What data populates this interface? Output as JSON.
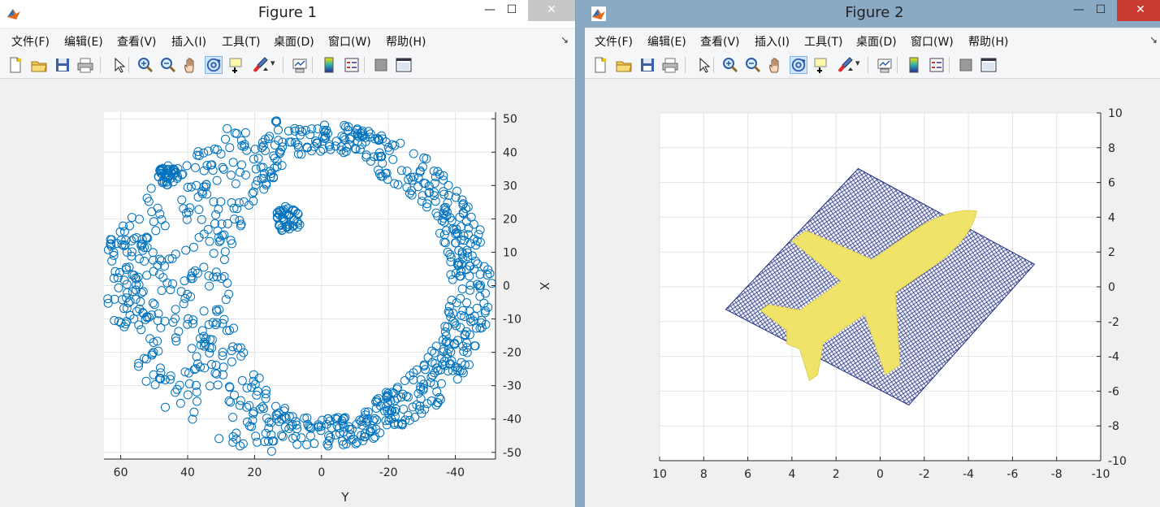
{
  "figures": [
    {
      "title": "Figure 1",
      "menu": [
        "文件(F)",
        "编辑(E)",
        "查看(V)",
        "插入(I)",
        "工具(T)",
        "桌面(D)",
        "窗口(W)",
        "帮助(H)"
      ],
      "toolbar_icons": [
        "new-figure-icon",
        "open-file-icon",
        "save-icon",
        "print-icon",
        "pointer-icon",
        "zoom-in-icon",
        "zoom-out-icon",
        "pan-icon",
        "rotate-3d-icon",
        "data-cursor-icon",
        "brush-icon",
        "link-plot-icon",
        "colorbar-icon",
        "legend-icon",
        "hide-plot-tools-icon",
        "show-plot-tools-icon"
      ],
      "window_controls": {
        "minimize": "—",
        "maximize": "☐",
        "close": "✕"
      }
    },
    {
      "title": "Figure 2",
      "menu": [
        "文件(F)",
        "编辑(E)",
        "查看(V)",
        "插入(I)",
        "工具(T)",
        "桌面(D)",
        "窗口(W)",
        "帮助(H)"
      ],
      "toolbar_icons": [
        "new-figure-icon",
        "open-file-icon",
        "save-icon",
        "print-icon",
        "pointer-icon",
        "zoom-in-icon",
        "zoom-out-icon",
        "pan-icon",
        "rotate-3d-icon",
        "data-cursor-icon",
        "brush-icon",
        "link-plot-icon",
        "colorbar-icon",
        "legend-icon",
        "hide-plot-tools-icon",
        "show-plot-tools-icon"
      ],
      "window_controls": {
        "minimize": "—",
        "maximize": "☐",
        "close": "✕"
      }
    }
  ],
  "chart_data": [
    {
      "type": "scatter",
      "xlabel": "Y",
      "ylabel": "X",
      "x_ticks": [
        "60",
        "40",
        "20",
        "0",
        "-20",
        "-40"
      ],
      "y_ticks": [
        "50",
        "40",
        "30",
        "20",
        "10",
        "0",
        "-10",
        "-20",
        "-30",
        "-40",
        "-50"
      ],
      "xlim": [
        -52,
        65
      ],
      "ylim": [
        -52,
        52
      ],
      "x_reversed": true,
      "y_axis_side": "right",
      "grid": true,
      "marker": "open-circle",
      "color": "#0072bd",
      "clusters": [
        {
          "shape": "ring",
          "center": [
            0,
            0
          ],
          "radius": [
            40,
            50
          ],
          "note": "dense circular band"
        },
        {
          "shape": "blob",
          "center": [
            10,
            20
          ],
          "radius": 4
        },
        {
          "shape": "blob",
          "center": [
            46,
            33
          ],
          "radius": 3
        }
      ]
    },
    {
      "type": "heatmap",
      "xlabel": "",
      "ylabel": "",
      "x_ticks": [
        "10",
        "8",
        "6",
        "4",
        "2",
        "0",
        "-2",
        "-4",
        "-6",
        "-8",
        "-10"
      ],
      "y_ticks": [
        "10",
        "8",
        "6",
        "4",
        "2",
        "0",
        "-2",
        "-4",
        "-6",
        "-8",
        "-10"
      ],
      "xlim": [
        -10,
        10
      ],
      "ylim": [
        -10,
        10
      ],
      "x_reversed": true,
      "y_axis_side": "right",
      "grid": true,
      "background_color": "#1f2f7f",
      "foreground_color": "#f0e36a",
      "region_corners": [
        [
          1,
          6.8
        ],
        [
          -7,
          1.3
        ],
        [
          -1.3,
          -6.8
        ],
        [
          7,
          -1.3
        ]
      ],
      "shape": "airplane"
    }
  ]
}
